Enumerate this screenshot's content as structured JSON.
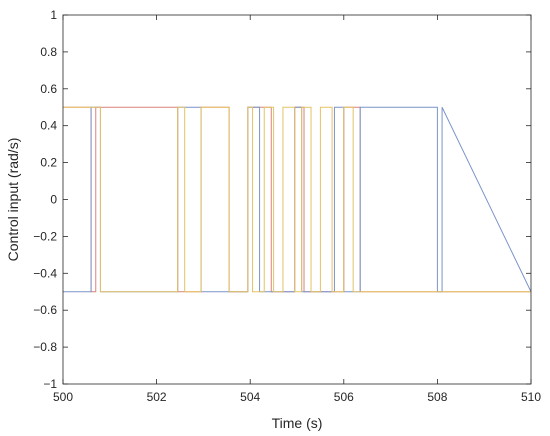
{
  "chart_data": {
    "type": "line",
    "title": "",
    "xlabel": "Time (s)",
    "ylabel": "Control input (rad/s)",
    "xlim": [
      500,
      510
    ],
    "ylim": [
      -1,
      1
    ],
    "x_ticks": [
      500,
      502,
      504,
      506,
      508,
      510
    ],
    "y_ticks": [
      -1,
      -0.8,
      -0.6,
      -0.4,
      -0.2,
      0,
      0.2,
      0.4,
      0.6,
      0.8,
      1
    ],
    "grid": false,
    "legend": "none",
    "series": [
      {
        "color": "#d9827a",
        "line_style": "step",
        "x": [
          500,
          500.6,
          500.6,
          500.7,
          500.7,
          502.45,
          502.45,
          502.95,
          502.95,
          503.55,
          503.55,
          503.95,
          503.95,
          504.45,
          504.45,
          504.95,
          504.95,
          505.15,
          505.15,
          506.0,
          506.0,
          506.35,
          506.35,
          510
        ],
        "y": [
          0.5,
          0.5,
          -0.5,
          -0.5,
          0.5,
          0.5,
          -0.5,
          -0.5,
          0.5,
          0.5,
          -0.5,
          -0.5,
          0.5,
          0.5,
          -0.5,
          -0.5,
          0.5,
          0.5,
          -0.5,
          -0.5,
          0.5,
          0.5,
          -0.5,
          -0.5
        ]
      },
      {
        "color": "#7a94c9",
        "line_style": "step",
        "x": [
          500,
          500.6,
          500.6,
          500.8,
          500.8,
          502.45,
          502.45,
          502.95,
          502.95,
          503.95,
          503.95,
          504.2,
          504.2,
          504.95,
          504.95,
          505.1,
          505.1,
          505.8,
          505.8,
          506.0,
          506.0,
          506.35,
          506.35,
          508.0,
          508.0,
          508.1,
          508.1,
          510
        ],
        "y": [
          -0.5,
          -0.5,
          0.5,
          0.5,
          -0.5,
          -0.5,
          0.5,
          0.5,
          -0.5,
          -0.5,
          0.5,
          0.5,
          -0.5,
          -0.5,
          0.5,
          0.5,
          -0.5,
          -0.5,
          0.5,
          0.5,
          -0.5,
          -0.5,
          0.5,
          0.5,
          -0.5,
          -0.5,
          0.5,
          -0.5
        ]
      },
      {
        "color": "#e6c265",
        "line_style": "step",
        "x": [
          500,
          500.8,
          500.8,
          502.45,
          502.45,
          502.6,
          502.6,
          502.95,
          502.95,
          503.55,
          503.55,
          503.95,
          503.95,
          504.05,
          504.05,
          504.3,
          504.3,
          504.5,
          504.5,
          504.7,
          504.7,
          504.95,
          504.95,
          505.1,
          505.1,
          505.3,
          505.3,
          505.5,
          505.5,
          505.75,
          505.75,
          506.0,
          506.0,
          506.2,
          506.2,
          506.45,
          506.45,
          510
        ],
        "y": [
          0.5,
          0.5,
          -0.5,
          -0.5,
          0.5,
          0.5,
          -0.5,
          -0.5,
          0.5,
          0.5,
          -0.5,
          -0.5,
          0.5,
          0.5,
          -0.5,
          -0.5,
          0.5,
          0.5,
          -0.5,
          -0.5,
          0.5,
          0.5,
          -0.5,
          -0.5,
          0.5,
          0.5,
          -0.5,
          -0.5,
          0.5,
          0.5,
          -0.5,
          -0.5,
          0.5,
          0.5,
          -0.5,
          -0.5,
          -0.5,
          -0.5
        ]
      }
    ]
  }
}
